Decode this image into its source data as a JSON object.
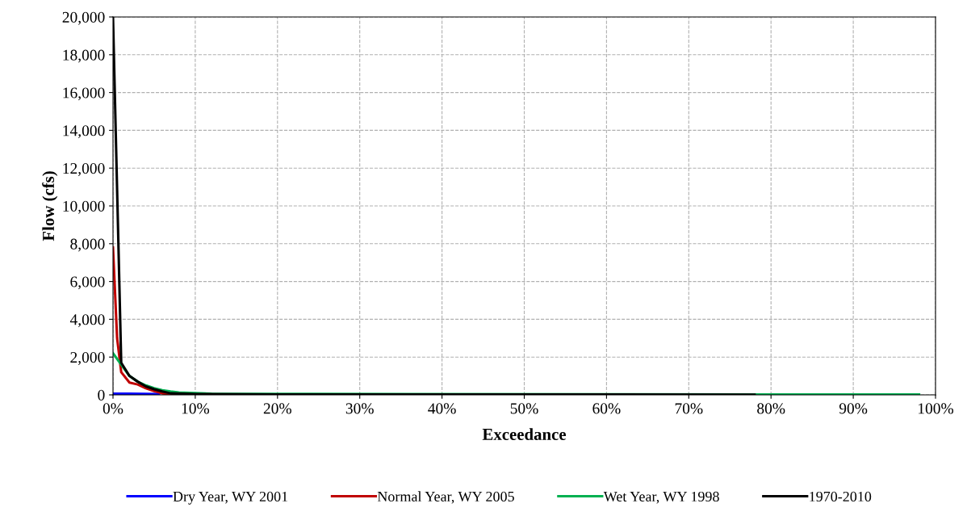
{
  "chart_data": {
    "type": "line",
    "xlabel": "Exceedance",
    "ylabel": "Flow (cfs)",
    "xlim": [
      0,
      100
    ],
    "ylim": [
      0,
      20000
    ],
    "xticks": [
      {
        "value": 0,
        "label": "0%"
      },
      {
        "value": 10,
        "label": "10%"
      },
      {
        "value": 20,
        "label": "20%"
      },
      {
        "value": 30,
        "label": "30%"
      },
      {
        "value": 40,
        "label": "40%"
      },
      {
        "value": 50,
        "label": "50%"
      },
      {
        "value": 60,
        "label": "60%"
      },
      {
        "value": 70,
        "label": "70%"
      },
      {
        "value": 80,
        "label": "80%"
      },
      {
        "value": 90,
        "label": "90%"
      },
      {
        "value": 100,
        "label": "100%"
      }
    ],
    "yticks": [
      {
        "value": 0,
        "label": "0"
      },
      {
        "value": 2000,
        "label": "2,000"
      },
      {
        "value": 4000,
        "label": "4,000"
      },
      {
        "value": 6000,
        "label": "6,000"
      },
      {
        "value": 8000,
        "label": "8,000"
      },
      {
        "value": 10000,
        "label": "10,000"
      },
      {
        "value": 12000,
        "label": "12,000"
      },
      {
        "value": 14000,
        "label": "14,000"
      },
      {
        "value": 16000,
        "label": "16,000"
      },
      {
        "value": 18000,
        "label": "18,000"
      },
      {
        "value": 20000,
        "label": "20,000"
      }
    ],
    "grid": true,
    "legend": "bottom",
    "marker": "none",
    "line_style": "solid",
    "series": [
      {
        "name": "Dry Year, WY 2001",
        "color": "#0000ff",
        "x": [
          0,
          2,
          4,
          5.6
        ],
        "values": [
          60,
          60,
          50,
          40
        ]
      },
      {
        "name": "Normal Year, WY 2005",
        "color": "#c00000",
        "x": [
          0,
          0.5,
          1,
          2,
          3,
          4,
          5,
          6,
          7,
          8
        ],
        "values": [
          7800,
          3000,
          1200,
          650,
          550,
          350,
          200,
          80,
          20,
          0
        ]
      },
      {
        "name": "Wet Year, WY 1998",
        "color": "#00b050",
        "x": [
          0,
          1,
          2,
          3,
          4,
          5,
          6,
          7,
          8,
          10,
          12,
          80,
          98
        ],
        "values": [
          2200,
          1600,
          1000,
          700,
          500,
          350,
          250,
          180,
          130,
          100,
          60,
          20,
          20
        ]
      },
      {
        "name": "1970-2010",
        "color": "#000000",
        "x": [
          0,
          1,
          2,
          3,
          4,
          5,
          6,
          7,
          10,
          20,
          50,
          78
        ],
        "values": [
          20000,
          1700,
          1000,
          700,
          450,
          300,
          180,
          80,
          40,
          20,
          20,
          10
        ]
      }
    ]
  }
}
